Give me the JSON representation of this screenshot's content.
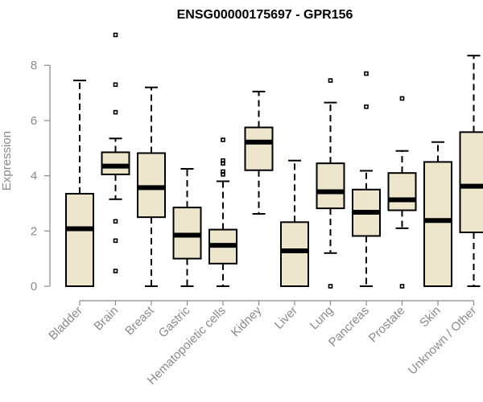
{
  "chart_data": {
    "type": "boxplot",
    "title": "ENSG00000175697 - GPR156",
    "xlabel": "",
    "ylabel": "Expression",
    "ylim": [
      0,
      9.2
    ],
    "yticks": [
      0,
      2,
      4,
      6,
      8
    ],
    "categories": [
      "Bladder",
      "Brain",
      "Breast",
      "Gastric",
      "Hematopoietic cells",
      "Kidney",
      "Liver",
      "Lung",
      "Pancreas",
      "Prostate",
      "Skin",
      "Unknown / Other"
    ],
    "boxes": [
      {
        "min": 0.0,
        "q1": 0.0,
        "median": 2.08,
        "q3": 3.35,
        "max": 7.45,
        "outliers": []
      },
      {
        "min": 3.15,
        "q1": 4.05,
        "median": 4.35,
        "q3": 4.85,
        "max": 5.35,
        "outliers": [
          0.55,
          1.65,
          2.35,
          6.3,
          7.3,
          9.1
        ]
      },
      {
        "min": 0.0,
        "q1": 2.5,
        "median": 3.57,
        "q3": 4.82,
        "max": 7.2,
        "outliers": []
      },
      {
        "min": 0.0,
        "q1": 1.0,
        "median": 1.85,
        "q3": 2.85,
        "max": 4.25,
        "outliers": []
      },
      {
        "min": 0.0,
        "q1": 0.82,
        "median": 1.48,
        "q3": 2.05,
        "max": 3.8,
        "outliers": [
          4.05,
          4.15,
          4.45,
          4.55,
          5.3
        ]
      },
      {
        "min": 2.62,
        "q1": 4.2,
        "median": 5.22,
        "q3": 5.75,
        "max": 7.05,
        "outliers": []
      },
      {
        "min": 0.0,
        "q1": 0.0,
        "median": 1.28,
        "q3": 2.32,
        "max": 4.55,
        "outliers": []
      },
      {
        "min": 1.2,
        "q1": 2.82,
        "median": 3.42,
        "q3": 4.45,
        "max": 6.65,
        "outliers": [
          0.0,
          7.45
        ]
      },
      {
        "min": 0.0,
        "q1": 1.82,
        "median": 2.68,
        "q3": 3.5,
        "max": 4.18,
        "outliers": [
          6.5,
          7.7
        ]
      },
      {
        "min": 2.1,
        "q1": 2.75,
        "median": 3.13,
        "q3": 4.1,
        "max": 4.9,
        "outliers": [
          0.0,
          6.8
        ]
      },
      {
        "min": 0.0,
        "q1": 0.0,
        "median": 2.38,
        "q3": 4.5,
        "max": 5.22,
        "outliers": []
      },
      {
        "min": 0.0,
        "q1": 1.95,
        "median": 3.62,
        "q3": 5.58,
        "max": 8.35,
        "outliers": []
      }
    ]
  }
}
